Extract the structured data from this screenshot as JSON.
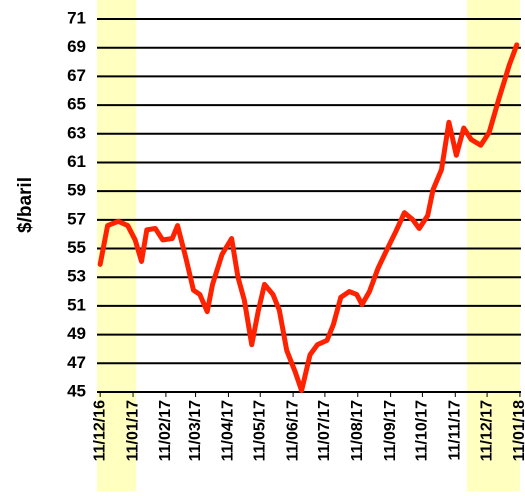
{
  "chart_data": {
    "type": "line",
    "y_label": "$/baril",
    "xlim": [
      "2016-12-08",
      "2018-01-12"
    ],
    "xticks": [
      {
        "value": "2016-12-11",
        "label": "11/12/16"
      },
      {
        "value": "2017-01-11",
        "label": "11/01/17"
      },
      {
        "value": "2017-02-11",
        "label": "11/02/17"
      },
      {
        "value": "2017-03-11",
        "label": "11/03/17"
      },
      {
        "value": "2017-04-11",
        "label": "11/04/17"
      },
      {
        "value": "2017-05-11",
        "label": "11/05/17"
      },
      {
        "value": "2017-06-11",
        "label": "11/06/17"
      },
      {
        "value": "2017-07-11",
        "label": "11/07/17"
      },
      {
        "value": "2017-08-11",
        "label": "11/08/17"
      },
      {
        "value": "2017-09-11",
        "label": "11/09/17"
      },
      {
        "value": "2017-10-11",
        "label": "11/10/17"
      },
      {
        "value": "2017-11-11",
        "label": "11/11/17"
      },
      {
        "value": "2017-12-11",
        "label": "11/12/17"
      },
      {
        "value": "2018-01-11",
        "label": "11/01/18"
      }
    ],
    "ylim": [
      45,
      71
    ],
    "yticks": [
      45,
      47,
      49,
      51,
      53,
      55,
      57,
      59,
      61,
      63,
      65,
      67,
      69,
      71
    ],
    "grid": true,
    "shaded_ranges": [
      [
        "2016-12-08",
        "2017-01-14"
      ],
      [
        "2017-11-22",
        "2018-01-11"
      ]
    ],
    "shade_color": "#ffffc0",
    "x": [
      "2016-12-11",
      "2016-12-18",
      "2016-12-28",
      "2017-01-06",
      "2017-01-13",
      "2017-01-19",
      "2017-01-24",
      "2017-02-01",
      "2017-02-08",
      "2017-02-17",
      "2017-02-22",
      "2017-03-02",
      "2017-03-09",
      "2017-03-15",
      "2017-03-22",
      "2017-03-27",
      "2017-04-05",
      "2017-04-14",
      "2017-04-20",
      "2017-04-26",
      "2017-05-03",
      "2017-05-09",
      "2017-05-15",
      "2017-05-23",
      "2017-05-29",
      "2017-06-05",
      "2017-06-13",
      "2017-06-19",
      "2017-06-27",
      "2017-07-04",
      "2017-07-13",
      "2017-07-19",
      "2017-07-26",
      "2017-08-03",
      "2017-08-10",
      "2017-08-15",
      "2017-08-22",
      "2017-08-30",
      "2017-09-08",
      "2017-09-16",
      "2017-09-24",
      "2017-10-02",
      "2017-10-08",
      "2017-10-16",
      "2017-10-21",
      "2017-10-29",
      "2017-11-05",
      "2017-11-12",
      "2017-11-19",
      "2017-11-26",
      "2017-12-05",
      "2017-12-13",
      "2017-12-22",
      "2018-01-01",
      "2018-01-08"
    ],
    "series": [
      {
        "color": "#ff2200",
        "values": [
          53.9,
          56.6,
          56.9,
          56.6,
          55.6,
          54.1,
          56.3,
          56.4,
          55.6,
          55.7,
          56.6,
          54.3,
          52.1,
          51.8,
          50.6,
          52.5,
          54.6,
          55.7,
          53.0,
          51.4,
          48.3,
          50.6,
          52.5,
          51.8,
          50.7,
          47.9,
          46.4,
          45.1,
          47.6,
          48.3,
          48.6,
          49.7,
          51.6,
          52.0,
          51.8,
          51.1,
          52.0,
          53.6,
          55.0,
          56.2,
          57.5,
          57.0,
          56.4,
          57.3,
          59.1,
          60.5,
          63.8,
          61.5,
          63.4,
          62.6,
          62.2,
          63.1,
          65.4,
          67.8,
          69.2
        ]
      }
    ]
  }
}
